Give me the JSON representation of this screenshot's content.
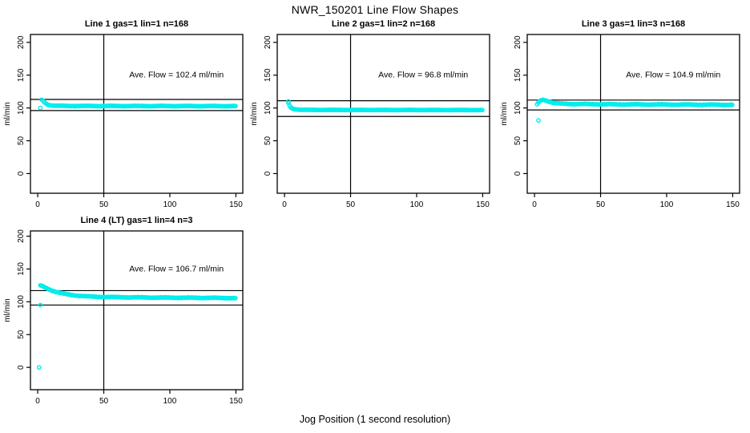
{
  "title": "NWR_150201  Line Flow Shapes",
  "xlabel": "Jog Position (1 second resolution)",
  "colors": {
    "series": "#00EDED",
    "axis": "#000000",
    "background": "#FFFFFF"
  },
  "chart_data": [
    {
      "type": "scatter",
      "title": "Line 1 gas=1 lin=1 n=168",
      "annotation": "Ave. Flow =  102.4  ml/min",
      "ave_flow_ml_min": 102.4,
      "n": 168,
      "ylabel": "ml/min",
      "x_ticks": [
        0,
        50,
        100,
        150
      ],
      "y_ticks": [
        0,
        50,
        100,
        150,
        200
      ],
      "xlim": [
        -5.5,
        155.2
      ],
      "ylim": [
        -30,
        212
      ],
      "vline_x": 50,
      "ref_lines": [
        113,
        96
      ],
      "annotation_at": [
        105,
        150
      ],
      "curve_keypoints": [
        [
          3,
          112.5
        ],
        [
          4,
          111
        ],
        [
          5,
          109
        ],
        [
          6,
          107.5
        ],
        [
          7,
          106
        ],
        [
          8,
          105
        ],
        [
          9,
          104.3
        ],
        [
          11,
          103.7
        ],
        [
          15,
          103.2
        ],
        [
          30,
          103
        ],
        [
          150,
          102.8
        ]
      ],
      "outliers": [
        [
          2,
          100
        ]
      ],
      "marker_step": 0.9,
      "jitter": 0.45
    },
    {
      "type": "scatter",
      "title": "Line 2 gas=1 lin=2 n=168",
      "annotation": "Ave. Flow =  96.8  ml/min",
      "ave_flow_ml_min": 96.8,
      "n": 168,
      "ylabel": "ml/min",
      "x_ticks": [
        0,
        50,
        100,
        150
      ],
      "y_ticks": [
        0,
        50,
        100,
        150,
        200
      ],
      "xlim": [
        -5.5,
        155.2
      ],
      "ylim": [
        -30,
        212
      ],
      "vline_x": 50,
      "ref_lines": [
        111,
        87
      ],
      "annotation_at": [
        105,
        150
      ],
      "curve_keypoints": [
        [
          3,
          107.5
        ],
        [
          4,
          103
        ],
        [
          5,
          100.5
        ],
        [
          6,
          99
        ],
        [
          8,
          98
        ],
        [
          12,
          97.2
        ],
        [
          30,
          97
        ],
        [
          150,
          96.8
        ]
      ],
      "outliers": [
        [
          3,
          110
        ]
      ],
      "marker_step": 0.9,
      "jitter": 0.18
    },
    {
      "type": "scatter",
      "title": "Line 3 gas=1 lin=3 n=168",
      "annotation": "Ave. Flow =  104.9  ml/min",
      "ave_flow_ml_min": 104.9,
      "n": 168,
      "ylabel": "ml/min",
      "x_ticks": [
        0,
        50,
        100,
        150
      ],
      "y_ticks": [
        0,
        50,
        100,
        150,
        200
      ],
      "xlim": [
        -5.5,
        155.2
      ],
      "ylim": [
        -30,
        212
      ],
      "vline_x": 50,
      "ref_lines": [
        112,
        97
      ],
      "annotation_at": [
        105,
        150
      ],
      "curve_keypoints": [
        [
          2,
          105.5
        ],
        [
          3,
          108
        ],
        [
          4,
          110.5
        ],
        [
          5,
          112
        ],
        [
          6,
          112.5
        ],
        [
          8,
          112
        ],
        [
          10,
          110.5
        ],
        [
          13,
          108.5
        ],
        [
          16,
          107.3
        ],
        [
          20,
          106.5
        ],
        [
          30,
          106
        ],
        [
          60,
          105.5
        ],
        [
          100,
          105.2
        ],
        [
          150,
          104.8
        ]
      ],
      "outliers": [
        [
          3,
          81
        ]
      ],
      "marker_step": 0.9,
      "jitter": 0.55
    },
    {
      "type": "scatter",
      "title": "Line 4 (LT) gas=1 lin=4 n=3",
      "annotation": "Ave. Flow =  106.7  ml/min",
      "ave_flow_ml_min": 106.7,
      "n": 3,
      "ylabel": "ml/min",
      "x_ticks": [
        0,
        50,
        100,
        150
      ],
      "y_ticks": [
        0,
        50,
        100,
        150,
        200
      ],
      "xlim": [
        -5.5,
        155.2
      ],
      "ylim": [
        -34,
        208
      ],
      "vline_x": 50,
      "ref_lines": [
        117,
        95
      ],
      "annotation_at": [
        105,
        150
      ],
      "curve_keypoints": [
        [
          2,
          125
        ],
        [
          4,
          123.5
        ],
        [
          6,
          121.5
        ],
        [
          8,
          119.5
        ],
        [
          11,
          117
        ],
        [
          14,
          115
        ],
        [
          18,
          113
        ],
        [
          22,
          111.5
        ],
        [
          27,
          110
        ],
        [
          32,
          109
        ],
        [
          38,
          108.2
        ],
        [
          45,
          107.6
        ],
        [
          55,
          107.2
        ],
        [
          70,
          106.8
        ],
        [
          90,
          106.4
        ],
        [
          110,
          106.2
        ],
        [
          130,
          106
        ],
        [
          150,
          105.6
        ]
      ],
      "outliers": [
        [
          1,
          0
        ],
        [
          2,
          95
        ]
      ],
      "marker_step": 0.9,
      "jitter": 0.5
    }
  ]
}
